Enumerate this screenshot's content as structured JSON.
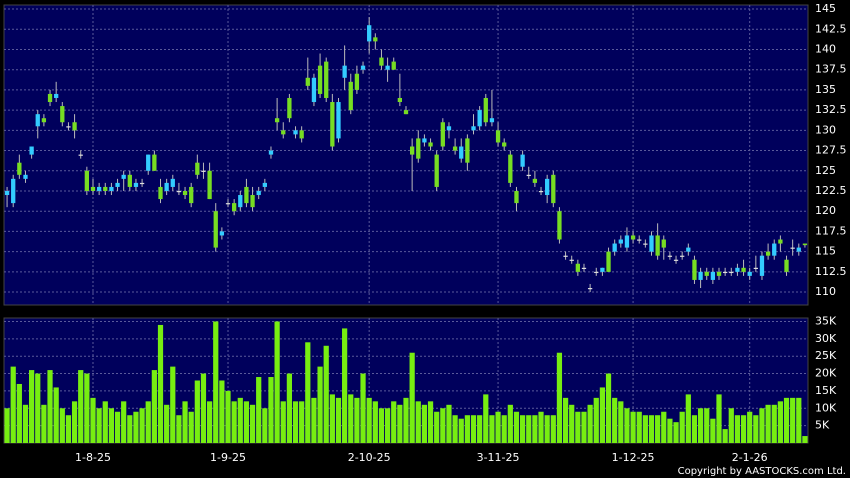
{
  "chart_data": [
    {
      "type": "candlestick",
      "up_color": "#33ccff",
      "down_color": "#77dd22",
      "flat_color": "#dddddd",
      "wick_color": "#bbbbbb",
      "grid": true,
      "categories": [
        null,
        null,
        null,
        null,
        null,
        null,
        null,
        null,
        null,
        null,
        null,
        null,
        null,
        null,
        "1-8-25",
        null,
        null,
        null,
        null,
        null,
        null,
        null,
        null,
        null,
        null,
        null,
        null,
        null,
        null,
        null,
        null,
        null,
        null,
        null,
        null,
        null,
        "1-9-25",
        null,
        null,
        null,
        null,
        null,
        null,
        null,
        null,
        null,
        null,
        null,
        null,
        null,
        null,
        null,
        null,
        null,
        null,
        null,
        null,
        null,
        null,
        "2-10-25",
        null,
        null,
        null,
        null,
        null,
        null,
        null,
        null,
        null,
        null,
        null,
        null,
        null,
        null,
        null,
        null,
        null,
        null,
        null,
        null,
        "3-11-25",
        null,
        null,
        null,
        null,
        null,
        null,
        null,
        null,
        null,
        null,
        null,
        null,
        null,
        null,
        null,
        null,
        null,
        null,
        null,
        null,
        null,
        "1-12-25",
        null,
        null,
        null,
        null,
        null,
        null,
        null,
        null,
        null,
        null,
        null,
        null,
        null,
        null,
        null,
        null,
        null,
        null,
        "2-1-26",
        null,
        null,
        null,
        null,
        null,
        null,
        null,
        null,
        null
      ],
      "open": [
        122,
        121,
        126,
        124,
        127,
        130.5,
        131.5,
        134.5,
        134,
        133,
        130.5,
        131,
        127,
        125,
        123,
        122.5,
        123,
        122.5,
        123,
        124,
        124.5,
        123,
        123.5,
        125,
        127,
        123,
        122.5,
        123,
        122.5,
        122.5,
        123,
        126,
        125,
        125,
        120,
        117,
        121,
        121,
        120.5,
        123,
        122,
        122,
        123,
        127,
        131.5,
        130,
        134,
        129.5,
        130,
        136.5,
        133.5,
        138,
        138.5,
        133.5,
        129,
        136.5,
        136,
        137,
        137.5,
        141,
        141.5,
        139,
        137.5,
        138.5,
        134,
        132.5,
        128,
        129,
        128.5,
        128.5,
        127,
        131,
        130,
        128,
        126.5,
        129,
        130,
        130.5,
        134,
        131,
        130,
        128.5,
        127,
        122.5,
        125.5,
        124.5,
        124,
        122.5,
        122,
        124.5,
        120,
        114.5,
        114,
        113.5,
        113,
        110.5,
        112.5,
        112.5,
        115,
        115,
        116,
        115.5,
        117,
        116.5,
        116,
        115,
        117,
        116.5,
        114.5,
        114,
        114.5,
        115,
        114,
        111.5,
        112.5,
        111.5,
        112.5,
        112.5,
        112.5,
        112.5,
        113,
        112,
        113,
        112,
        115,
        114.5,
        116.5,
        114,
        115.5,
        115,
        116
      ],
      "high": [
        123,
        124.5,
        127,
        125,
        128,
        132.5,
        132,
        135,
        136,
        133.5,
        131,
        132,
        127.5,
        125.5,
        124,
        123.5,
        123.5,
        123.5,
        124,
        125,
        125,
        124,
        124,
        127,
        127.5,
        124,
        124,
        124.5,
        123.5,
        123,
        123.5,
        127,
        126,
        126,
        121,
        118,
        121.5,
        121.5,
        122.5,
        124,
        123,
        123,
        124,
        128,
        134,
        131,
        134.5,
        130.5,
        130.5,
        139,
        137,
        139.5,
        139,
        134.5,
        134,
        140.5,
        137,
        138,
        138.5,
        144,
        142,
        140,
        139,
        139,
        137,
        133,
        129,
        130,
        129.5,
        129,
        127.5,
        131.5,
        131,
        129,
        129,
        129.5,
        132,
        133,
        134.5,
        135,
        131,
        129,
        127.5,
        123,
        127.5,
        125.5,
        125,
        123,
        124.5,
        125,
        120.5,
        115,
        114.5,
        114,
        113.5,
        111,
        113,
        113,
        115.5,
        116.5,
        117,
        118,
        117.5,
        117,
        116.5,
        117.5,
        118.5,
        117,
        115,
        114.5,
        115,
        116,
        114.5,
        113,
        113,
        113,
        113,
        113,
        113,
        113.5,
        114,
        113,
        114.5,
        115,
        116,
        116.5,
        117,
        114.5,
        116.5,
        116,
        116
      ],
      "low": [
        120.5,
        120.5,
        124,
        123.5,
        126.5,
        129,
        130.5,
        133,
        133.5,
        130.5,
        130,
        129,
        126.5,
        122,
        122,
        122,
        122,
        122,
        122.5,
        122.5,
        122.5,
        122.5,
        123,
        124.5,
        125,
        121,
        122,
        122.5,
        122,
        121.5,
        120.5,
        124,
        124,
        121.5,
        115,
        116.5,
        120.5,
        119.5,
        120,
        120.5,
        120,
        121.5,
        122.5,
        126.5,
        130,
        129,
        131,
        129,
        128.5,
        135,
        133,
        134,
        133.5,
        127.5,
        128.5,
        135,
        132,
        134.5,
        137,
        139.5,
        140,
        137.5,
        136,
        137.5,
        133,
        132,
        122.5,
        126,
        128,
        127.5,
        122.5,
        127.5,
        129,
        127,
        126,
        125,
        129.5,
        130,
        130.5,
        130.5,
        128,
        127.5,
        123,
        120,
        125,
        124,
        123,
        122,
        121,
        120.5,
        116,
        114,
        113.5,
        112,
        112.5,
        110,
        112,
        112,
        112.5,
        114.5,
        115.5,
        115,
        116,
        116,
        115.5,
        114.5,
        114,
        114,
        114,
        113.5,
        114,
        114.5,
        111,
        110.5,
        111.5,
        111,
        111.5,
        112,
        112,
        112,
        112,
        111.5,
        112.5,
        111.5,
        114,
        114,
        115,
        112,
        114.5,
        114.5,
        115.5
      ],
      "close": [
        122.5,
        124,
        124.5,
        124.5,
        128,
        132,
        131,
        133.5,
        134.5,
        131,
        130.5,
        130,
        127,
        122.5,
        122.5,
        123,
        122.5,
        123,
        123.5,
        124.5,
        123,
        123.5,
        123.5,
        127,
        125,
        121.5,
        123.5,
        124,
        122.5,
        122,
        121,
        124.5,
        125,
        121.5,
        115.5,
        117.5,
        121,
        120,
        122,
        121,
        120.5,
        122.5,
        123.5,
        127.5,
        131,
        129.5,
        131.5,
        130,
        129,
        135.5,
        136.5,
        134.5,
        134,
        128,
        133.5,
        138,
        132.5,
        135,
        138,
        143,
        141,
        138,
        138,
        137.5,
        133.5,
        132,
        127,
        126.5,
        129,
        128,
        123,
        128,
        130.5,
        127.5,
        128,
        126,
        130.5,
        132.5,
        131,
        131.5,
        128.5,
        128,
        123.5,
        121,
        127,
        124.5,
        123.5,
        122.5,
        124,
        121,
        116.5,
        114.5,
        114,
        112.5,
        113,
        110.5,
        112.5,
        113,
        112.5,
        116,
        116.5,
        117,
        116.5,
        116.5,
        116,
        117,
        114.5,
        115.5,
        114.5,
        114,
        114.5,
        115.5,
        111.5,
        112.5,
        112,
        112.5,
        112,
        112.5,
        112.5,
        113,
        112.5,
        112.5,
        113,
        114.5,
        114.5,
        116,
        116,
        112.5,
        115.5,
        115.5,
        115.8
      ],
      "ylim": [
        108.4,
        145.5
      ],
      "yticks": [
        110,
        112.5,
        115,
        117.5,
        120,
        122.5,
        125,
        127.5,
        130,
        132.5,
        135,
        137.5,
        140,
        142.5,
        145
      ]
    },
    {
      "type": "bar",
      "color": "#77ee11",
      "grid": true,
      "values": [
        10000,
        22000,
        17000,
        11000,
        21000,
        20000,
        11000,
        21000,
        16000,
        10000,
        8000,
        12000,
        21000,
        20000,
        13000,
        10000,
        12000,
        10000,
        9000,
        12000,
        8000,
        9000,
        10000,
        12000,
        21000,
        34000,
        11000,
        22000,
        8000,
        12000,
        9000,
        18000,
        20000,
        12000,
        35000,
        18000,
        15000,
        12000,
        13000,
        12000,
        11000,
        19000,
        10000,
        19000,
        35000,
        12000,
        20000,
        12000,
        12000,
        29000,
        13000,
        22000,
        28000,
        14000,
        13000,
        33000,
        14000,
        13000,
        20000,
        13000,
        12000,
        10000,
        10000,
        12000,
        11000,
        13000,
        26000,
        12000,
        11000,
        12000,
        9000,
        10000,
        11000,
        8000,
        7000,
        8000,
        8000,
        8000,
        14000,
        8000,
        9000,
        8000,
        11000,
        9000,
        8000,
        8000,
        8000,
        9000,
        8000,
        8000,
        26000,
        13000,
        11000,
        9000,
        9000,
        11000,
        13000,
        16000,
        20000,
        13000,
        12000,
        10000,
        9000,
        9000,
        8000,
        8000,
        8000,
        9000,
        7000,
        6000,
        9000,
        14000,
        8000,
        10000,
        10000,
        7000,
        14000,
        4000,
        10000,
        8000,
        8000,
        9000,
        8000,
        10000,
        11000,
        11000,
        12000,
        13000,
        13000,
        13000,
        2000
      ],
      "ylim": [
        0,
        36000
      ],
      "yticks": [
        {
          "value": 5000,
          "label": "5K"
        },
        {
          "value": 10000,
          "label": "10K"
        },
        {
          "value": 15000,
          "label": "15K"
        },
        {
          "value": 20000,
          "label": "20K"
        },
        {
          "value": 25000,
          "label": "25K"
        },
        {
          "value": 30000,
          "label": "30K"
        },
        {
          "value": 35000,
          "label": "35K"
        }
      ]
    }
  ],
  "copyright": "Copyright by AASTOCKS.com Ltd."
}
